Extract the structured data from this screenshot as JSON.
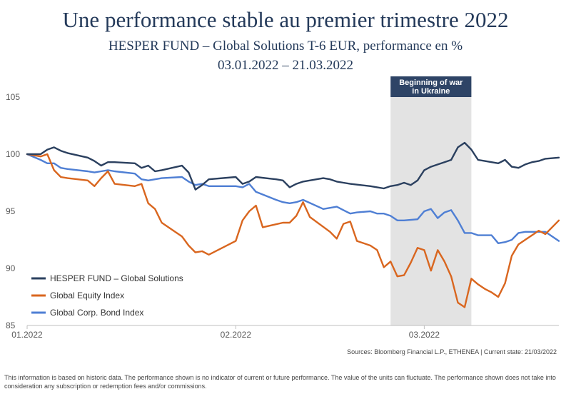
{
  "header": {
    "title": "Une performance stable au premier trimestre 2022",
    "subtitle": "HESPER FUND – Global Solutions T-6 EUR, performance en %",
    "date_range": "03.01.2022 – 21.03.2022"
  },
  "footer": {
    "source": "Sources: Bloomberg Financial L.P., ETHENEA | Current state: 21/03/2022",
    "disclaimer": "This information is based on historic data. The performance shown is no indicator of current or future performance. The value of the units can fluctuate. The performance shown does not take into consideration any subscription or redemption fees and/or commissions."
  },
  "chart_data": {
    "type": "line",
    "title": "Une performance stable au premier trimestre 2022",
    "ylim": [
      85,
      105
    ],
    "y_ticks": [
      85,
      90,
      95,
      100,
      105
    ],
    "xlim": [
      "2022-01-01",
      "2022-03-21"
    ],
    "x_ticks": [
      {
        "date": "2022-01-01",
        "label": "01.2022"
      },
      {
        "date": "2022-02-01",
        "label": "02.2022"
      },
      {
        "date": "2022-03-01",
        "label": "03.2022"
      }
    ],
    "grid": false,
    "legend_position": "bottom-left",
    "annotation": {
      "text_line1": "Beginning of war",
      "text_line2": "in Ukraine",
      "x_start": "2022-02-24",
      "x_end": "2022-03-08",
      "color": "#2e4466"
    },
    "series": [
      {
        "name": "HESPER FUND – Global Solutions",
        "color": "#2b405f",
        "points": [
          [
            "2022-01-01",
            100.0
          ],
          [
            "2022-01-03",
            100.0
          ],
          [
            "2022-01-04",
            100.4
          ],
          [
            "2022-01-05",
            100.6
          ],
          [
            "2022-01-06",
            100.3
          ],
          [
            "2022-01-07",
            100.1
          ],
          [
            "2022-01-10",
            99.7
          ],
          [
            "2022-01-11",
            99.4
          ],
          [
            "2022-01-12",
            99.0
          ],
          [
            "2022-01-13",
            99.3
          ],
          [
            "2022-01-14",
            99.3
          ],
          [
            "2022-01-17",
            99.2
          ],
          [
            "2022-01-18",
            98.8
          ],
          [
            "2022-01-19",
            99.0
          ],
          [
            "2022-01-20",
            98.5
          ],
          [
            "2022-01-21",
            98.6
          ],
          [
            "2022-01-24",
            99.0
          ],
          [
            "2022-01-25",
            98.4
          ],
          [
            "2022-01-26",
            96.9
          ],
          [
            "2022-01-27",
            97.3
          ],
          [
            "2022-01-28",
            97.8
          ],
          [
            "2022-02-01",
            98.0
          ],
          [
            "2022-02-02",
            97.4
          ],
          [
            "2022-02-03",
            97.6
          ],
          [
            "2022-02-04",
            98.0
          ],
          [
            "2022-02-07",
            97.8
          ],
          [
            "2022-02-08",
            97.7
          ],
          [
            "2022-02-09",
            97.1
          ],
          [
            "2022-02-10",
            97.4
          ],
          [
            "2022-02-11",
            97.6
          ],
          [
            "2022-02-14",
            97.9
          ],
          [
            "2022-02-15",
            97.8
          ],
          [
            "2022-02-16",
            97.6
          ],
          [
            "2022-02-17",
            97.5
          ],
          [
            "2022-02-18",
            97.4
          ],
          [
            "2022-02-21",
            97.2
          ],
          [
            "2022-02-22",
            97.1
          ],
          [
            "2022-02-23",
            97.0
          ],
          [
            "2022-02-24",
            97.2
          ],
          [
            "2022-02-25",
            97.3
          ],
          [
            "2022-02-26",
            97.5
          ],
          [
            "2022-02-27",
            97.3
          ],
          [
            "2022-02-28",
            97.7
          ],
          [
            "2022-03-01",
            98.6
          ],
          [
            "2022-03-02",
            98.9
          ],
          [
            "2022-03-03",
            99.1
          ],
          [
            "2022-03-04",
            99.3
          ],
          [
            "2022-03-05",
            99.5
          ],
          [
            "2022-03-06",
            100.6
          ],
          [
            "2022-03-07",
            101.0
          ],
          [
            "2022-03-08",
            100.4
          ],
          [
            "2022-03-09",
            99.5
          ],
          [
            "2022-03-10",
            99.4
          ],
          [
            "2022-03-11",
            99.3
          ],
          [
            "2022-03-12",
            99.2
          ],
          [
            "2022-03-13",
            99.5
          ],
          [
            "2022-03-14",
            98.9
          ],
          [
            "2022-03-15",
            98.8
          ],
          [
            "2022-03-16",
            99.1
          ],
          [
            "2022-03-17",
            99.3
          ],
          [
            "2022-03-18",
            99.4
          ],
          [
            "2022-03-19",
            99.6
          ],
          [
            "2022-03-21",
            99.7
          ]
        ]
      },
      {
        "name": "Global Equity Index",
        "color": "#d9661f",
        "points": [
          [
            "2022-01-01",
            100.0
          ],
          [
            "2022-01-03",
            99.8
          ],
          [
            "2022-01-04",
            100.0
          ],
          [
            "2022-01-05",
            98.6
          ],
          [
            "2022-01-06",
            98.0
          ],
          [
            "2022-01-07",
            97.9
          ],
          [
            "2022-01-10",
            97.7
          ],
          [
            "2022-01-11",
            97.2
          ],
          [
            "2022-01-12",
            97.9
          ],
          [
            "2022-01-13",
            98.5
          ],
          [
            "2022-01-14",
            97.4
          ],
          [
            "2022-01-17",
            97.2
          ],
          [
            "2022-01-18",
            97.4
          ],
          [
            "2022-01-19",
            95.7
          ],
          [
            "2022-01-20",
            95.2
          ],
          [
            "2022-01-21",
            94.0
          ],
          [
            "2022-01-24",
            92.8
          ],
          [
            "2022-01-25",
            92.0
          ],
          [
            "2022-01-26",
            91.4
          ],
          [
            "2022-01-27",
            91.5
          ],
          [
            "2022-01-28",
            91.2
          ],
          [
            "2022-02-01",
            92.4
          ],
          [
            "2022-02-02",
            94.2
          ],
          [
            "2022-02-03",
            95.0
          ],
          [
            "2022-02-04",
            95.5
          ],
          [
            "2022-02-05",
            93.6
          ],
          [
            "2022-02-08",
            94.0
          ],
          [
            "2022-02-09",
            94.0
          ],
          [
            "2022-02-10",
            94.6
          ],
          [
            "2022-02-11",
            95.8
          ],
          [
            "2022-02-12",
            94.5
          ],
          [
            "2022-02-15",
            93.2
          ],
          [
            "2022-02-16",
            92.6
          ],
          [
            "2022-02-17",
            93.9
          ],
          [
            "2022-02-18",
            94.1
          ],
          [
            "2022-02-19",
            92.4
          ],
          [
            "2022-02-21",
            92.0
          ],
          [
            "2022-02-22",
            91.6
          ],
          [
            "2022-02-23",
            90.1
          ],
          [
            "2022-02-24",
            90.6
          ],
          [
            "2022-02-25",
            89.3
          ],
          [
            "2022-02-26",
            89.4
          ],
          [
            "2022-02-27",
            90.5
          ],
          [
            "2022-02-28",
            91.8
          ],
          [
            "2022-03-01",
            91.6
          ],
          [
            "2022-03-02",
            89.8
          ],
          [
            "2022-03-03",
            91.6
          ],
          [
            "2022-03-04",
            90.6
          ],
          [
            "2022-03-05",
            89.3
          ],
          [
            "2022-03-06",
            87.0
          ],
          [
            "2022-03-07",
            86.6
          ],
          [
            "2022-03-08",
            89.1
          ],
          [
            "2022-03-09",
            88.6
          ],
          [
            "2022-03-10",
            88.2
          ],
          [
            "2022-03-11",
            87.9
          ],
          [
            "2022-03-12",
            87.5
          ],
          [
            "2022-03-13",
            88.7
          ],
          [
            "2022-03-14",
            91.1
          ],
          [
            "2022-03-15",
            92.1
          ],
          [
            "2022-03-16",
            92.5
          ],
          [
            "2022-03-17",
            92.9
          ],
          [
            "2022-03-18",
            93.3
          ],
          [
            "2022-03-19",
            93.0
          ],
          [
            "2022-03-21",
            94.2
          ]
        ]
      },
      {
        "name": "Global Corp. Bond Index",
        "color": "#4f7fd4",
        "points": [
          [
            "2022-01-01",
            100.0
          ],
          [
            "2022-01-03",
            99.5
          ],
          [
            "2022-01-04",
            99.2
          ],
          [
            "2022-01-05",
            99.2
          ],
          [
            "2022-01-06",
            98.8
          ],
          [
            "2022-01-07",
            98.7
          ],
          [
            "2022-01-10",
            98.5
          ],
          [
            "2022-01-11",
            98.4
          ],
          [
            "2022-01-12",
            98.5
          ],
          [
            "2022-01-13",
            98.6
          ],
          [
            "2022-01-14",
            98.5
          ],
          [
            "2022-01-17",
            98.3
          ],
          [
            "2022-01-18",
            97.8
          ],
          [
            "2022-01-19",
            97.7
          ],
          [
            "2022-01-20",
            97.8
          ],
          [
            "2022-01-21",
            97.9
          ],
          [
            "2022-01-24",
            98.0
          ],
          [
            "2022-01-25",
            97.6
          ],
          [
            "2022-01-26",
            97.3
          ],
          [
            "2022-01-27",
            97.4
          ],
          [
            "2022-01-28",
            97.2
          ],
          [
            "2022-02-01",
            97.2
          ],
          [
            "2022-02-02",
            97.1
          ],
          [
            "2022-02-03",
            97.4
          ],
          [
            "2022-02-04",
            96.7
          ],
          [
            "2022-02-07",
            96.0
          ],
          [
            "2022-02-08",
            95.8
          ],
          [
            "2022-02-09",
            95.7
          ],
          [
            "2022-02-10",
            95.8
          ],
          [
            "2022-02-11",
            96.0
          ],
          [
            "2022-02-14",
            95.2
          ],
          [
            "2022-02-15",
            95.3
          ],
          [
            "2022-02-16",
            95.4
          ],
          [
            "2022-02-17",
            95.1
          ],
          [
            "2022-02-18",
            94.8
          ],
          [
            "2022-02-19",
            94.9
          ],
          [
            "2022-02-21",
            95.0
          ],
          [
            "2022-02-22",
            94.8
          ],
          [
            "2022-02-23",
            94.8
          ],
          [
            "2022-02-24",
            94.6
          ],
          [
            "2022-02-25",
            94.2
          ],
          [
            "2022-02-26",
            94.2
          ],
          [
            "2022-02-28",
            94.3
          ],
          [
            "2022-03-01",
            95.0
          ],
          [
            "2022-03-02",
            95.2
          ],
          [
            "2022-03-03",
            94.4
          ],
          [
            "2022-03-04",
            94.9
          ],
          [
            "2022-03-05",
            95.1
          ],
          [
            "2022-03-06",
            94.2
          ],
          [
            "2022-03-07",
            93.1
          ],
          [
            "2022-03-08",
            93.1
          ],
          [
            "2022-03-09",
            92.9
          ],
          [
            "2022-03-10",
            92.9
          ],
          [
            "2022-03-11",
            92.9
          ],
          [
            "2022-03-12",
            92.2
          ],
          [
            "2022-03-13",
            92.3
          ],
          [
            "2022-03-14",
            92.5
          ],
          [
            "2022-03-15",
            93.1
          ],
          [
            "2022-03-16",
            93.2
          ],
          [
            "2022-03-17",
            93.2
          ],
          [
            "2022-03-18",
            93.2
          ],
          [
            "2022-03-19",
            93.2
          ],
          [
            "2022-03-20",
            92.8
          ],
          [
            "2022-03-21",
            92.4
          ]
        ]
      }
    ]
  }
}
